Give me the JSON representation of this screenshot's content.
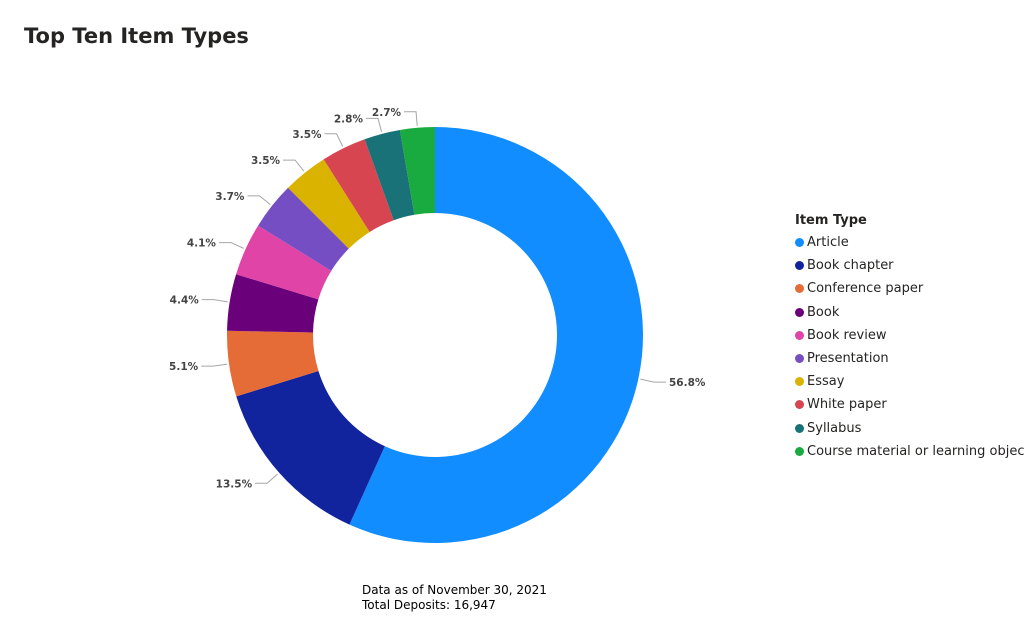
{
  "colors": {
    "Article": "#118DFF",
    "Book chapter": "#12239E",
    "Conference paper": "#E66C37",
    "Book": "#6B007B",
    "Book review": "#E044A7",
    "Presentation": "#744EC2",
    "Essay": "#D9B300",
    "White paper": "#D64550",
    "Syllabus": "#197278",
    "Course material or learning objects": "#1AAB40"
  },
  "legend": {
    "title": "Item Type"
  },
  "footnote": {
    "line1": "Data as of November 30, 2021",
    "line2": "Total Deposits: 16,947"
  },
  "chart_data": {
    "type": "pie",
    "variant": "donut",
    "title": "Top Ten Item Types",
    "legend_position": "right",
    "slices": [
      {
        "name": "Article",
        "value": 56.8,
        "label": "56.8%"
      },
      {
        "name": "Book chapter",
        "value": 13.5,
        "label": "13.5%"
      },
      {
        "name": "Conference paper",
        "value": 5.1,
        "label": "5.1%"
      },
      {
        "name": "Book",
        "value": 4.4,
        "label": "4.4%"
      },
      {
        "name": "Book review",
        "value": 4.1,
        "label": "4.1%"
      },
      {
        "name": "Presentation",
        "value": 3.7,
        "label": "3.7%"
      },
      {
        "name": "Essay",
        "value": 3.5,
        "label": "3.5%"
      },
      {
        "name": "White paper",
        "value": 3.5,
        "label": "3.5%"
      },
      {
        "name": "Syllabus",
        "value": 2.8,
        "label": "2.8%"
      },
      {
        "name": "Course material or learning objects",
        "value": 2.7,
        "label": "2.7%"
      }
    ]
  }
}
